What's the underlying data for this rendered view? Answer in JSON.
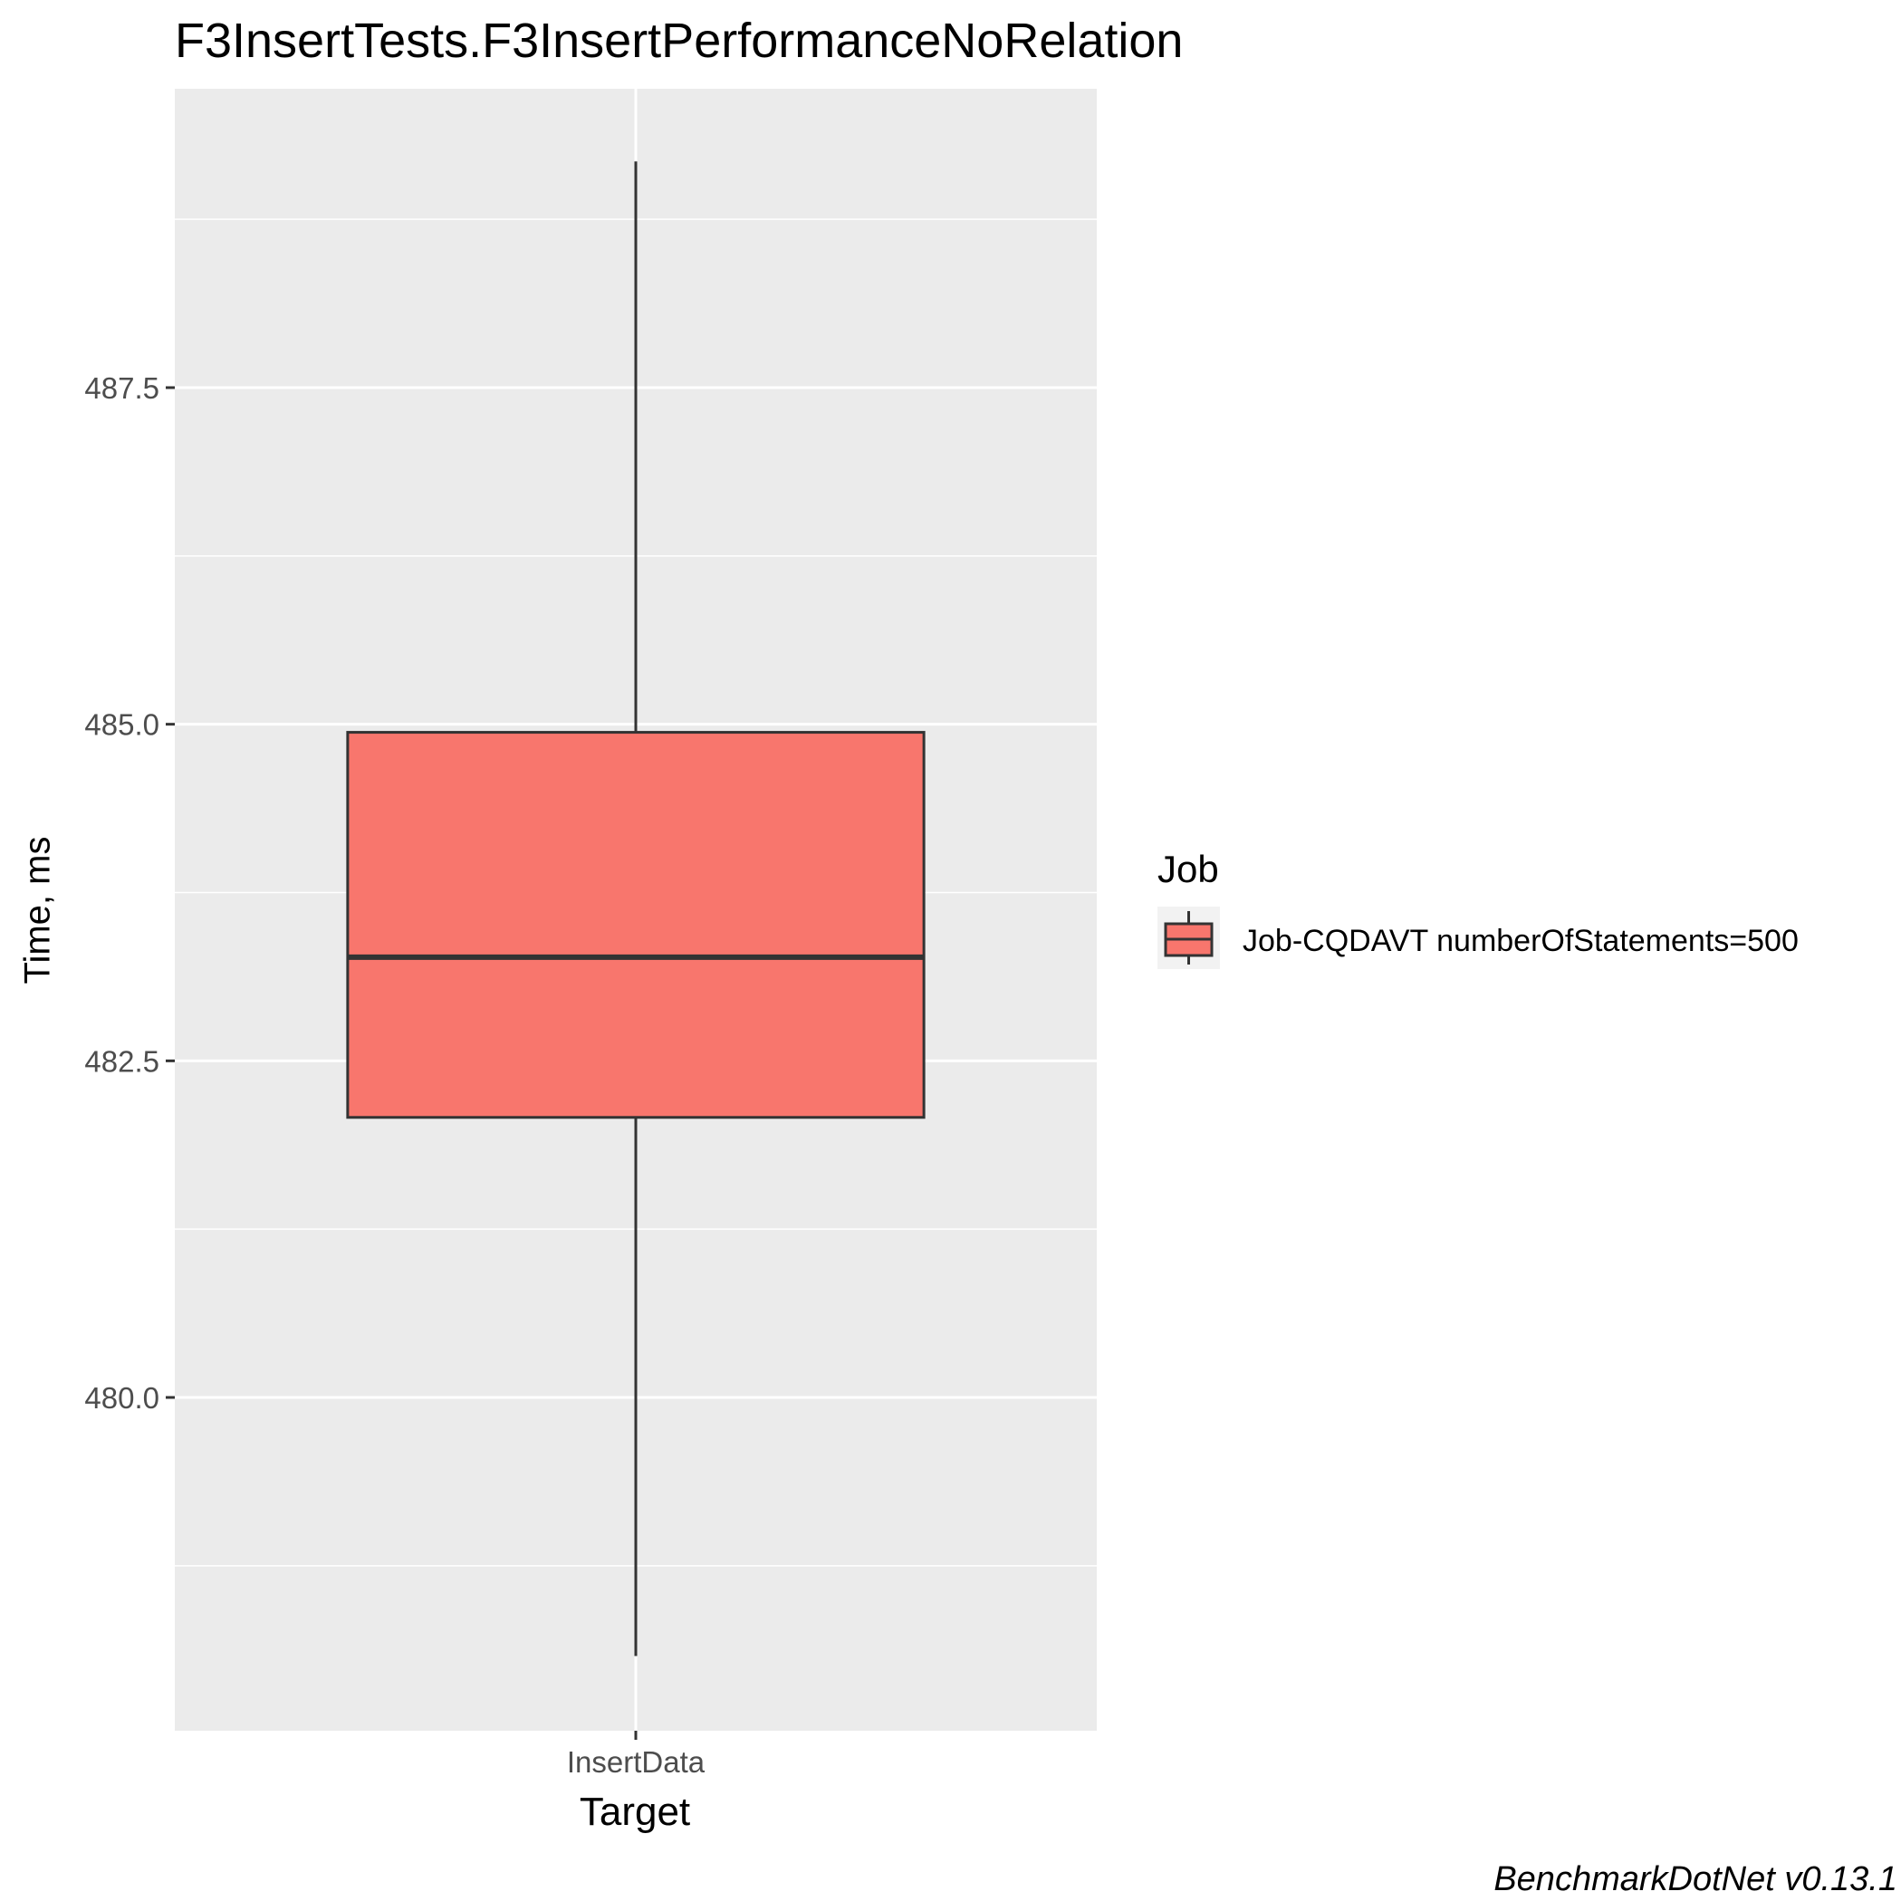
{
  "chart_data": {
    "type": "box",
    "title": "F3InsertTests.F3InsertPerformanceNoRelation",
    "xlabel": "Target",
    "ylabel": "Time, ms",
    "categories": [
      "InsertData"
    ],
    "y_ticks": [
      480.0,
      482.5,
      485.0,
      487.5
    ],
    "y_tick_labels": [
      "480.0",
      "482.5",
      "485.0",
      "487.5"
    ],
    "ylim": [
      477.5,
      489.9
    ],
    "grid": true,
    "legend": {
      "title": "Job",
      "position": "right",
      "entries": [
        "Job-CQDAVT numberOfStatements=500"
      ]
    },
    "series": [
      {
        "name": "Job-CQDAVT numberOfStatements=500",
        "category": "InsertData",
        "whisker_low": 478.08,
        "q1": 482.08,
        "median": 483.27,
        "q3": 484.94,
        "whisker_high": 489.18,
        "fill": "#F8766D"
      }
    ],
    "caption": "BenchmarkDotNet v0.13.1"
  },
  "colors": {
    "panel_background": "#EBEBEB",
    "grid": "#FFFFFF",
    "box_fill": "#F8766D",
    "box_stroke": "#333333",
    "axis_text": "#4D4D4D"
  }
}
